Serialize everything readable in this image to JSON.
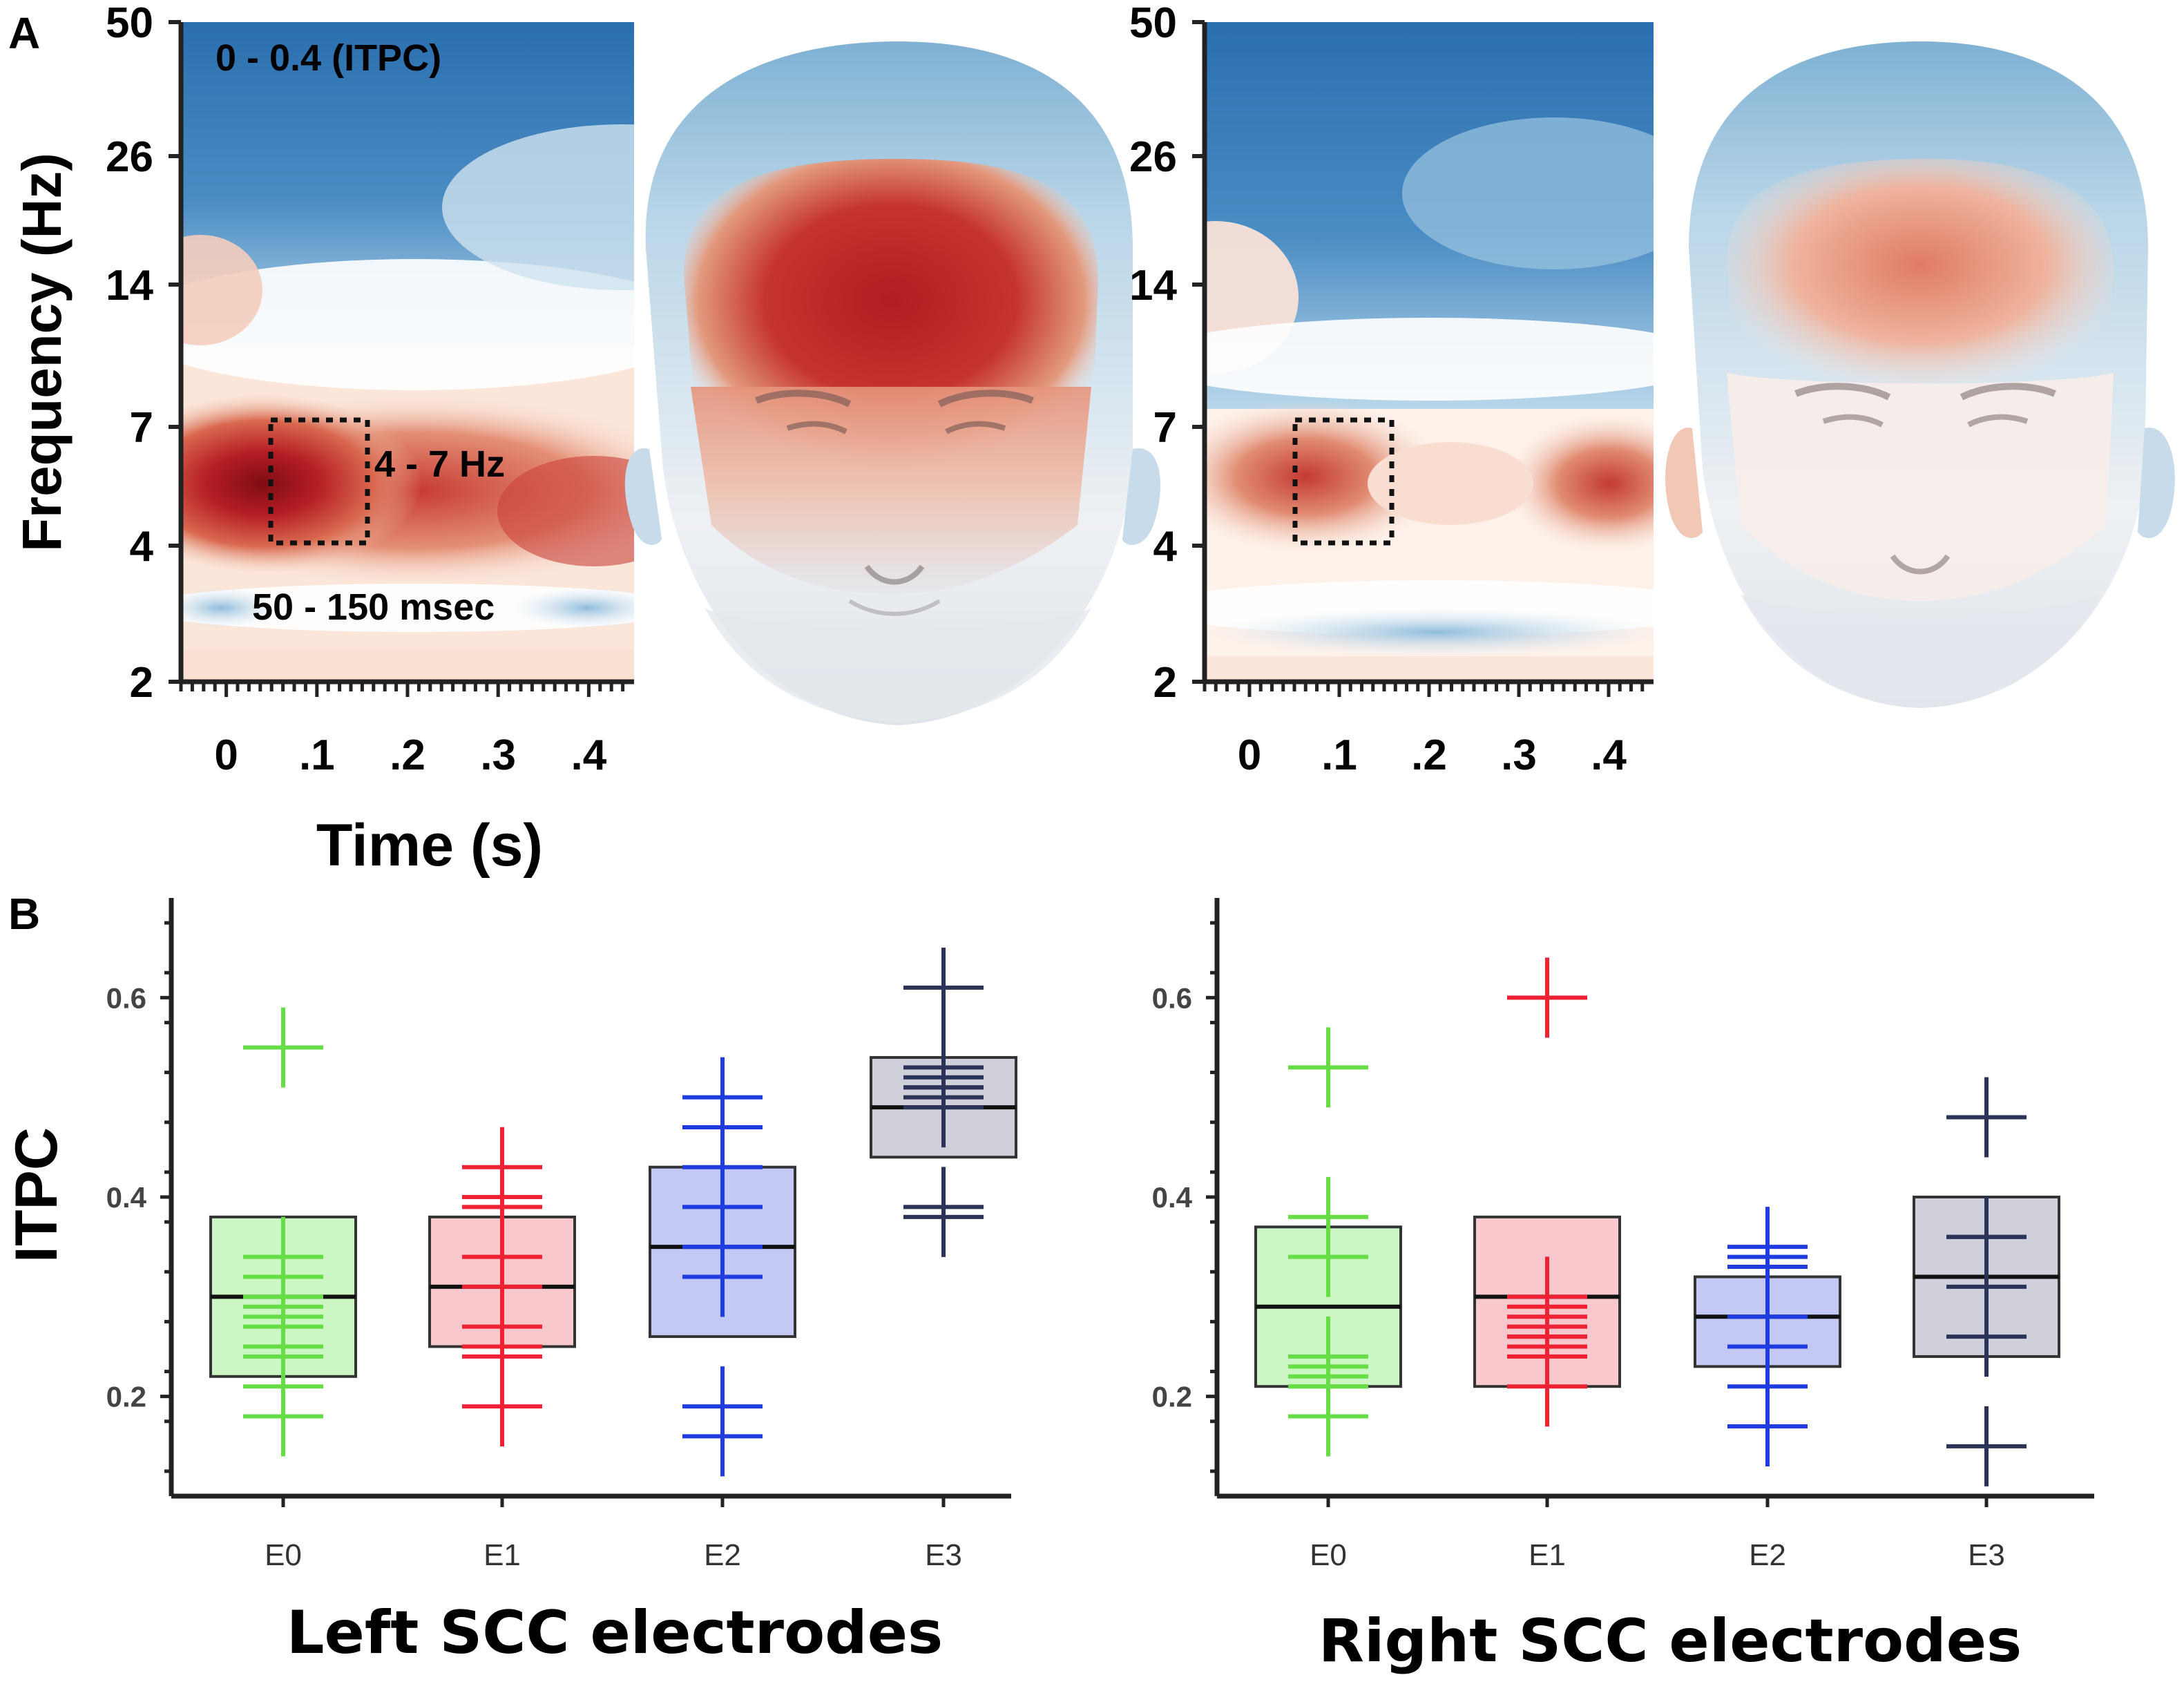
{
  "panel_labels": {
    "a": "A",
    "b": "B"
  },
  "colors": {
    "E0": "#66dd44",
    "E0_fill": "#ccf6c4",
    "E1": "#ee2233",
    "E1_fill": "#f8c8cc",
    "E2": "#1f3ce0",
    "E2_fill": "#c4c8f4",
    "E3": "#2b3358",
    "E3_fill": "#cfd0da",
    "heat_red": "#b31b22",
    "heat_blue": "#2a72b0"
  },
  "chart_data": [
    {
      "type": "heatmap",
      "id": "left_tf",
      "title": "0 - 0.4 (ITPC)",
      "ylabel": "Frequency (Hz)",
      "xlabel": "Time (s)",
      "yticks": [
        "50",
        "26",
        "14",
        "7",
        "4",
        "2"
      ],
      "xticks": [
        "0",
        ".1",
        ".2",
        ".3",
        ".4"
      ],
      "color_range": [
        0,
        0.4
      ],
      "roi_freq_label": "4 - 7 Hz",
      "roi_time_label": "50 - 150 msec",
      "roi": {
        "t0": 0.05,
        "t1": 0.15,
        "f0": 4,
        "f1": 7
      }
    },
    {
      "type": "heatmap",
      "id": "right_tf",
      "yticks": [
        "50",
        "26",
        "14",
        "7",
        "4",
        "2"
      ],
      "xticks": [
        "0",
        ".1",
        ".2",
        ".3",
        ".4"
      ],
      "roi": {
        "t0": 0.05,
        "t1": 0.15,
        "f0": 4,
        "f1": 7
      }
    },
    {
      "type": "box",
      "id": "left_box",
      "ylabel": "ITPC",
      "xlabel": "Left SCC electrodes",
      "ylim": [
        0.1,
        0.7
      ],
      "yticks": [
        "0.2",
        "0.4",
        "0.6"
      ],
      "categories": [
        "E0",
        "E1",
        "E2",
        "E3"
      ],
      "boxes": [
        {
          "q1": 0.22,
          "median": 0.3,
          "q3": 0.38,
          "points": [
            0.55,
            0.34,
            0.32,
            0.3,
            0.29,
            0.28,
            0.27,
            0.25,
            0.24,
            0.21,
            0.18
          ]
        },
        {
          "q1": 0.25,
          "median": 0.31,
          "q3": 0.38,
          "points": [
            0.43,
            0.4,
            0.4,
            0.39,
            0.34,
            0.31,
            0.27,
            0.25,
            0.24,
            0.19
          ]
        },
        {
          "q1": 0.26,
          "median": 0.35,
          "q3": 0.43,
          "points": [
            0.5,
            0.47,
            0.43,
            0.39,
            0.35,
            0.35,
            0.32,
            0.19,
            0.16
          ]
        },
        {
          "q1": 0.44,
          "median": 0.49,
          "q3": 0.54,
          "points": [
            0.61,
            0.53,
            0.52,
            0.51,
            0.51,
            0.5,
            0.49,
            0.39,
            0.38
          ]
        }
      ]
    },
    {
      "type": "box",
      "id": "right_box",
      "xlabel": "Right SCC electrodes",
      "ylim": [
        0.1,
        0.7
      ],
      "yticks": [
        "0.2",
        "0.4",
        "0.6"
      ],
      "categories": [
        "E0",
        "E1",
        "E2",
        "E3"
      ],
      "boxes": [
        {
          "q1": 0.21,
          "median": 0.29,
          "q3": 0.37,
          "points": [
            0.53,
            0.38,
            0.34,
            0.24,
            0.23,
            0.22,
            0.21,
            0.21,
            0.18
          ]
        },
        {
          "q1": 0.21,
          "median": 0.3,
          "q3": 0.38,
          "points": [
            0.6,
            0.3,
            0.29,
            0.28,
            0.27,
            0.26,
            0.26,
            0.25,
            0.24,
            0.21
          ]
        },
        {
          "q1": 0.23,
          "median": 0.28,
          "q3": 0.32,
          "points": [
            0.35,
            0.34,
            0.33,
            0.28,
            0.25,
            0.21,
            0.17
          ]
        },
        {
          "q1": 0.24,
          "median": 0.32,
          "q3": 0.4,
          "points": [
            0.48,
            0.36,
            0.36,
            0.31,
            0.26,
            0.15
          ]
        }
      ]
    }
  ]
}
